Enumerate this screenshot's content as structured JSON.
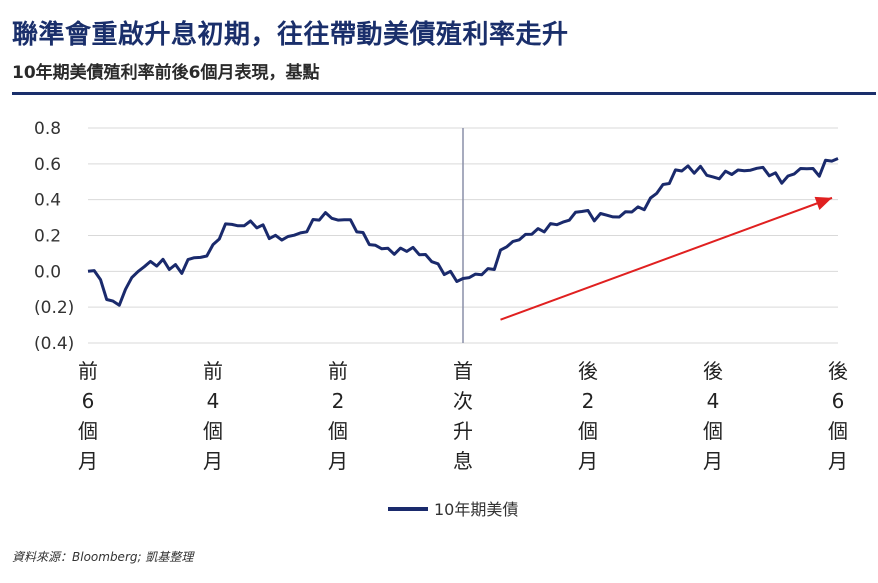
{
  "title": "聯準會重啟升息初期，往往帶動美債殖利率走升",
  "subtitle": "10年期美債殖利率前後6個月表現，基點",
  "source": "資料來源：Bloomberg; 凱基整理",
  "colors": {
    "series": "#1a2a6c",
    "arrow": "#e02020",
    "grid": "#d9d9d9",
    "divider": "#8a8fa8",
    "title": "#1a2f6b"
  },
  "chart_data": {
    "type": "line",
    "title": "聯準會重啟升息初期，往往帶動美債殖利率走升",
    "subtitle": "10年期美債殖利率前後6個月表現，基點",
    "xlabel": "",
    "ylabel": "",
    "xlim": [
      -6,
      6
    ],
    "ylim": [
      -0.4,
      0.8
    ],
    "y_ticks": [
      {
        "value": 0.8,
        "label": "0.8"
      },
      {
        "value": 0.6,
        "label": "0.6"
      },
      {
        "value": 0.4,
        "label": "0.4"
      },
      {
        "value": 0.2,
        "label": "0.2"
      },
      {
        "value": 0.0,
        "label": "0.0"
      },
      {
        "value": -0.2,
        "label": "(0.2)"
      },
      {
        "value": -0.4,
        "label": "(0.4)"
      }
    ],
    "x_ticks": [
      {
        "value": -6,
        "label": "前6個月"
      },
      {
        "value": -4,
        "label": "前4個月"
      },
      {
        "value": -2,
        "label": "前2個月"
      },
      {
        "value": 0,
        "label": "首次升息"
      },
      {
        "value": 2,
        "label": "後2個月"
      },
      {
        "value": 4,
        "label": "後4個月"
      },
      {
        "value": 6,
        "label": "後6個月"
      }
    ],
    "grid": "horizontal",
    "legend_position": "bottom-center",
    "vertical_marker": 0,
    "series": [
      {
        "name": "10年期美債",
        "x": [
          -6.0,
          -5.9,
          -5.8,
          -5.7,
          -5.6,
          -5.5,
          -5.4,
          -5.3,
          -5.2,
          -5.1,
          -5.0,
          -4.9,
          -4.8,
          -4.7,
          -4.6,
          -4.5,
          -4.4,
          -4.3,
          -4.2,
          -4.1,
          -4.0,
          -3.9,
          -3.8,
          -3.7,
          -3.6,
          -3.5,
          -3.4,
          -3.3,
          -3.2,
          -3.1,
          -3.0,
          -2.9,
          -2.8,
          -2.7,
          -2.6,
          -2.5,
          -2.4,
          -2.3,
          -2.2,
          -2.1,
          -2.0,
          -1.9,
          -1.8,
          -1.7,
          -1.6,
          -1.5,
          -1.4,
          -1.3,
          -1.2,
          -1.1,
          -1.0,
          -0.9,
          -0.8,
          -0.7,
          -0.6,
          -0.5,
          -0.4,
          -0.3,
          -0.2,
          -0.1,
          0.0,
          0.1,
          0.2,
          0.3,
          0.4,
          0.5,
          0.6,
          0.7,
          0.8,
          0.9,
          1.0,
          1.1,
          1.2,
          1.3,
          1.4,
          1.5,
          1.6,
          1.7,
          1.8,
          1.9,
          2.0,
          2.1,
          2.2,
          2.3,
          2.4,
          2.5,
          2.6,
          2.7,
          2.8,
          2.9,
          3.0,
          3.1,
          3.2,
          3.3,
          3.4,
          3.5,
          3.6,
          3.7,
          3.8,
          3.9,
          4.0,
          4.1,
          4.2,
          4.3,
          4.4,
          4.5,
          4.6,
          4.7,
          4.8,
          4.9,
          5.0,
          5.1,
          5.2,
          5.3,
          5.4,
          5.5,
          5.6,
          5.7,
          5.8,
          5.9,
          6.0
        ],
        "values": [
          0.0,
          0.01,
          -0.05,
          -0.15,
          -0.18,
          -0.17,
          -0.12,
          -0.02,
          -0.01,
          0.03,
          0.05,
          0.04,
          0.05,
          0.03,
          0.02,
          0.0,
          0.06,
          0.08,
          0.07,
          0.1,
          0.13,
          0.2,
          0.25,
          0.27,
          0.25,
          0.26,
          0.27,
          0.26,
          0.24,
          0.2,
          0.19,
          0.18,
          0.19,
          0.21,
          0.2,
          0.24,
          0.27,
          0.3,
          0.32,
          0.3,
          0.28,
          0.3,
          0.27,
          0.24,
          0.2,
          0.16,
          0.14,
          0.13,
          0.12,
          0.11,
          0.11,
          0.13,
          0.12,
          0.1,
          0.09,
          0.06,
          0.03,
          0.0,
          -0.02,
          -0.04,
          -0.05,
          -0.03,
          -0.02,
          -0.01,
          0.0,
          0.03,
          0.1,
          0.15,
          0.16,
          0.18,
          0.2,
          0.22,
          0.22,
          0.24,
          0.25,
          0.27,
          0.27,
          0.29,
          0.32,
          0.35,
          0.32,
          0.3,
          0.31,
          0.32,
          0.3,
          0.31,
          0.32,
          0.35,
          0.34,
          0.36,
          0.4,
          0.44,
          0.48,
          0.5,
          0.55,
          0.58,
          0.57,
          0.56,
          0.58,
          0.54,
          0.52,
          0.53,
          0.54,
          0.56,
          0.55,
          0.57,
          0.56,
          0.58,
          0.57,
          0.55,
          0.53,
          0.51,
          0.52,
          0.55,
          0.57,
          0.58,
          0.56,
          0.55,
          0.6,
          0.63,
          0.63
        ]
      }
    ],
    "arrow": {
      "from": {
        "x": 0.6,
        "y": -0.27
      },
      "to": {
        "x": 6.0,
        "y": 0.41
      }
    }
  }
}
